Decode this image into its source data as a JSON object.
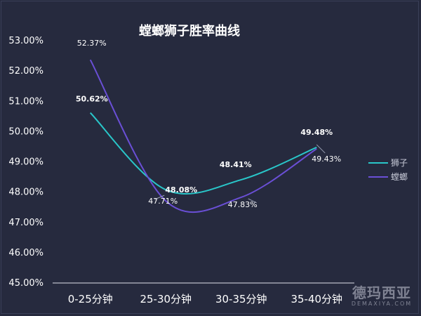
{
  "chart_data": {
    "type": "line",
    "title": "螳螂狮子胜率曲线",
    "categories": [
      "0-25分钟",
      "25-30分钟",
      "30-35分钟",
      "35-40分钟"
    ],
    "series": [
      {
        "name": "狮子",
        "values": [
          50.62,
          48.08,
          48.41,
          49.48
        ],
        "labels": [
          "50.62%",
          "48.08%",
          "48.41%",
          "49.48%"
        ],
        "color": "#29c6c9"
      },
      {
        "name": "螳螂",
        "values": [
          52.37,
          47.71,
          47.83,
          49.43
        ],
        "labels": [
          "52.37%",
          "47.71%",
          "47.83%",
          "49.43%"
        ],
        "color": "#6a4fd6"
      }
    ],
    "yticks": [
      "45.00%",
      "46.00%",
      "47.00%",
      "48.00%",
      "49.00%",
      "50.00%",
      "51.00%",
      "52.00%",
      "53.00%"
    ],
    "ylim": [
      45,
      53
    ],
    "legend_position": "right"
  },
  "watermark": {
    "cn": "德玛西亚",
    "en": "DEMAXIYA.COM"
  }
}
